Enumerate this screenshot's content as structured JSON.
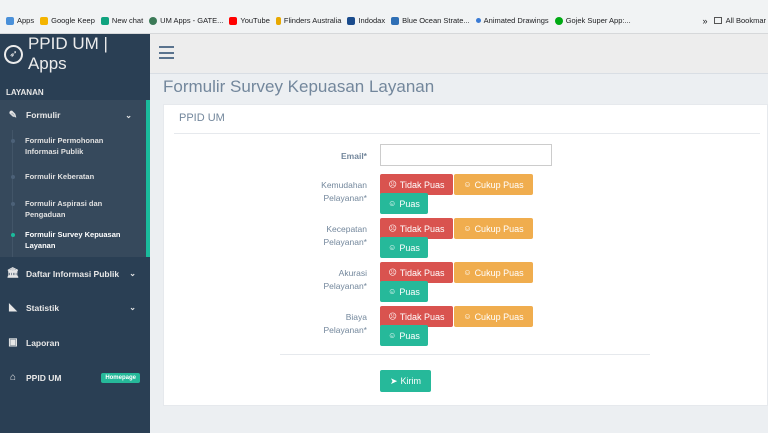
{
  "bookmarks": [
    {
      "label": "Apps",
      "color": "#4a90d9"
    },
    {
      "label": "Google Keep",
      "color": "#f4b400"
    },
    {
      "label": "New chat",
      "color": "#10a37f"
    },
    {
      "label": "UM Apps - GATE...",
      "color": "#3b7a57"
    },
    {
      "label": "YouTube",
      "color": "#ff0000"
    },
    {
      "label": "Flinders Australia",
      "color": "#e8a800"
    },
    {
      "label": "Indodax",
      "color": "#1a4b8c"
    },
    {
      "label": "Blue Ocean Strate...",
      "color": "#2f6fb5"
    },
    {
      "label": "Animated Drawings",
      "color": "#3a7bd5"
    },
    {
      "label": "Gojek Super App:...",
      "color": "#00aa13"
    }
  ],
  "bookmarks_more": "»",
  "bookmarks_all": "All Bookmar",
  "brand": {
    "logo_icon": "rocket-icon",
    "title": "PPID UM | Apps"
  },
  "sidebar": {
    "section": "LAYANAN",
    "formulir": {
      "label": "Formulir",
      "icon": "edit-icon",
      "subitems": [
        "Formulir Permohonan Informasi Publik",
        "Formulir Keberatan",
        "Formulir Aspirasi dan Pengaduan",
        "Formulir Survey Kepuasan Layanan"
      ]
    },
    "daftar": {
      "label": "Daftar Informasi Publik",
      "icon": "bank-icon"
    },
    "statistik": {
      "label": "Statistik",
      "icon": "area-chart-icon"
    },
    "laporan": {
      "label": "Laporan",
      "icon": "briefcase-icon"
    },
    "ppid": {
      "label": "PPID UM",
      "icon": "home-icon",
      "badge": "Homepage"
    }
  },
  "page": {
    "title": "Formulir Survey Kepuasan Layanan",
    "panel_title": "PPID UM"
  },
  "form": {
    "email_label": "Email*",
    "email_value": "",
    "questions": [
      {
        "label_line1": "Kemudahan",
        "label_line2": "Pelayanan*"
      },
      {
        "label_line1": "Kecepatan",
        "label_line2": "Pelayanan*"
      },
      {
        "label_line1": "Akurasi",
        "label_line2": "Pelayanan*"
      },
      {
        "label_line1": "Biaya",
        "label_line2": "Pelayanan*"
      }
    ],
    "options": {
      "bad": "Tidak Puas",
      "mid": "Cukup Puas",
      "good": "Puas"
    },
    "submit_label": "Kirim"
  },
  "colors": {
    "sidebar": "#2a3f54",
    "accent": "#1abb9c",
    "red": "#d9534f",
    "amber": "#f0ad4e",
    "green": "#26b99a"
  }
}
